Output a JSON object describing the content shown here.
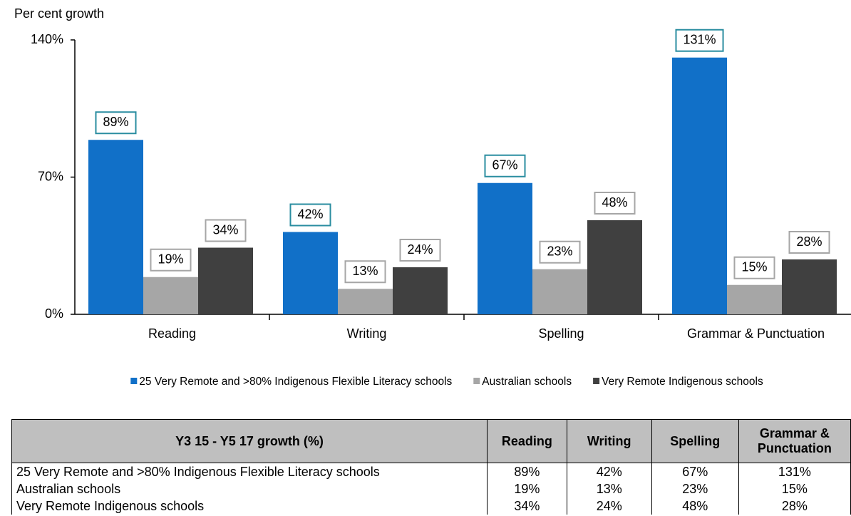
{
  "chart_data": {
    "type": "bar",
    "y_label": "Per cent growth",
    "categories": [
      "Reading",
      "Writing",
      "Spelling",
      "Grammar & Punctuation"
    ],
    "series": [
      {
        "name": "25 Very Remote and >80% Indigenous Flexible Literacy schools",
        "color": "#1170c8",
        "label_border": "#2a8da0",
        "values": [
          89,
          42,
          67,
          131
        ],
        "value_labels": [
          "89%",
          "42%",
          "67%",
          "131%"
        ]
      },
      {
        "name": "Australian schools",
        "color": "#a6a6a6",
        "label_border": "#a6a6a6",
        "values": [
          19,
          13,
          23,
          15
        ],
        "value_labels": [
          "19%",
          "13%",
          "23%",
          "15%"
        ]
      },
      {
        "name": "Very Remote Indigenous schools",
        "color": "#404040",
        "label_border": "#a6a6a6",
        "values": [
          34,
          24,
          48,
          28
        ],
        "value_labels": [
          "34%",
          "24%",
          "48%",
          "28%"
        ]
      }
    ],
    "ylim": [
      0,
      140
    ],
    "yticks": [
      {
        "value": 0,
        "label": "0%"
      },
      {
        "value": 70,
        "label": "70%"
      },
      {
        "value": 140,
        "label": "140%"
      }
    ],
    "legend": "bottom"
  },
  "table": {
    "columns": [
      "Y3 15 - Y5 17 growth (%)",
      "Reading",
      "Writing",
      "Spelling",
      "Grammar & Punctuation"
    ],
    "rows": [
      [
        "25 Very Remote and >80% Indigenous Flexible Literacy schools",
        "89%",
        "42%",
        "67%",
        "131%"
      ],
      [
        "Australian schools",
        "19%",
        "13%",
        "23%",
        "15%"
      ],
      [
        "Very Remote Indigenous schools",
        "34%",
        "24%",
        "48%",
        "28%"
      ]
    ]
  }
}
